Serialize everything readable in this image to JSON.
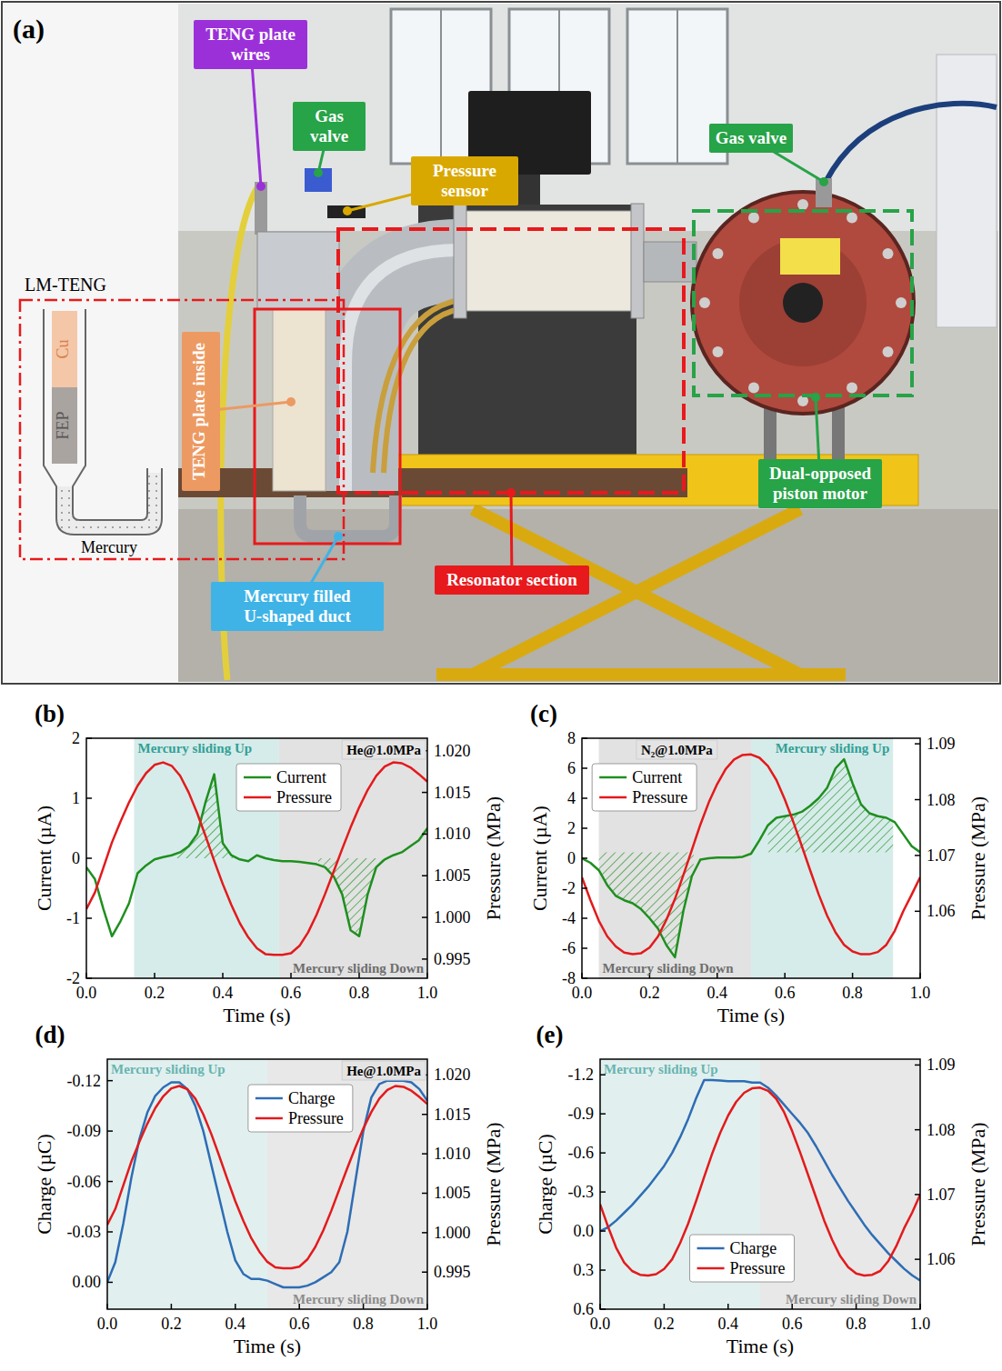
{
  "panel_a": {
    "label": "(a)",
    "inset": {
      "title": "LM-TENG",
      "layers": [
        "Cu",
        "FEP"
      ],
      "liquid": "Mercury"
    },
    "callouts": [
      {
        "text": "TENG plate wires",
        "color": "#9b30d9"
      },
      {
        "text": "Gas valve",
        "color": "#27a348"
      },
      {
        "text": "Pressure sensor",
        "color": "#d9a800"
      },
      {
        "text": "Gas valve",
        "color": "#27a348"
      },
      {
        "text": "TENG plate inside",
        "color": "#ec9a62"
      },
      {
        "text": "Mercury filled U-shaped duct",
        "color": "#3fb3e6"
      },
      {
        "text": "Resonator section",
        "color": "#e8191c"
      },
      {
        "text": "Dual-opposed piston motor",
        "color": "#27a348"
      }
    ]
  },
  "chart_data": [
    {
      "type": "line",
      "panel": "(b)",
      "annotation": "He@1.0MPa",
      "x_label": "Time (s)",
      "y_label": "Current (µA)",
      "y2_label": "Pressure (MPa)",
      "x": [
        0,
        0.025,
        0.05,
        0.075,
        0.1,
        0.125,
        0.15,
        0.175,
        0.2,
        0.225,
        0.25,
        0.275,
        0.3,
        0.325,
        0.35,
        0.375,
        0.4,
        0.425,
        0.45,
        0.475,
        0.5,
        0.525,
        0.55,
        0.575,
        0.6,
        0.625,
        0.65,
        0.675,
        0.7,
        0.725,
        0.75,
        0.775,
        0.8,
        0.825,
        0.85,
        0.875,
        0.9,
        0.925,
        0.95,
        0.975,
        1
      ],
      "xlim": [
        0,
        1
      ],
      "xticks": [
        {
          "value": 0,
          "label": "0.0"
        },
        {
          "value": 0.2,
          "label": "0.2"
        },
        {
          "value": 0.4,
          "label": "0.4"
        },
        {
          "value": 0.6,
          "label": "0.6"
        },
        {
          "value": 0.8,
          "label": "0.8"
        },
        {
          "value": 1,
          "label": "1.0"
        }
      ],
      "ylim": [
        -2,
        2
      ],
      "yticks": [
        -2,
        -1,
        0,
        1,
        2
      ],
      "y2lim": [
        0.9927,
        1.0215
      ],
      "y2ticks": [
        0.995,
        {
          "value": 1,
          "label": "1.000"
        },
        1.005,
        {
          "value": 1.01,
          "label": "1.010"
        },
        1.015,
        {
          "value": 1.02,
          "label": "1.020"
        }
      ],
      "legend": "upper center",
      "series": [
        {
          "name": "Current",
          "color": "#1f8f1f",
          "values": [
            -0.15,
            -0.35,
            -0.85,
            -1.3,
            -1.05,
            -0.75,
            -0.25,
            -0.12,
            -0.02,
            0.02,
            0.05,
            0.1,
            0.2,
            0.4,
            0.95,
            1.4,
            0.25,
            0.05,
            -0.02,
            -0.05,
            0.05,
            0,
            -0.03,
            -0.05,
            -0.05,
            -0.06,
            -0.08,
            -0.1,
            -0.15,
            -0.3,
            -0.6,
            -1.2,
            -1.3,
            -0.6,
            -0.15,
            -0.02,
            0.05,
            0.1,
            0.2,
            0.3,
            0.5
          ]
        },
        {
          "name": "Pressure",
          "color": "#e31a1c",
          "axis": "y2",
          "values": [
            1.001,
            1.003,
            1.006,
            1.009,
            1.0115,
            1.0138,
            1.0158,
            1.0173,
            1.0183,
            1.0186,
            1.0182,
            1.017,
            1.015,
            1.0125,
            1.0097,
            1.0068,
            1.004,
            1.0015,
            0.9993,
            0.9976,
            0.9963,
            0.9956,
            0.9955,
            0.9955,
            0.9957,
            0.9966,
            0.9982,
            1.0003,
            1.0028,
            1.0055,
            1.0082,
            1.0108,
            1.0132,
            1.0153,
            1.017,
            1.0181,
            1.0186,
            1.0185,
            1.018,
            1.0172,
            1.0163
          ]
        }
      ],
      "regions": [
        {
          "label": "Mercury sliding Up",
          "start": 0.14,
          "end": 0.565,
          "color": "#d6ecea"
        },
        {
          "label": "Mercury sliding Down",
          "start": 0.565,
          "end": 1,
          "color": "#e2e2e2"
        }
      ],
      "hatch": [
        {
          "start": 0.26,
          "end": 0.45,
          "base": 0
        },
        {
          "start": 0.68,
          "end": 0.87,
          "base": 0
        }
      ]
    },
    {
      "type": "line",
      "panel": "(c)",
      "annotation": "N₂@1.0MPa",
      "x_label": "Time (s)",
      "y_label": "Current (µA)",
      "y2_label": "Pressure (MPa)",
      "x": [
        0,
        0.025,
        0.05,
        0.075,
        0.1,
        0.125,
        0.15,
        0.175,
        0.2,
        0.225,
        0.25,
        0.275,
        0.3,
        0.325,
        0.35,
        0.375,
        0.4,
        0.425,
        0.45,
        0.475,
        0.5,
        0.525,
        0.55,
        0.575,
        0.6,
        0.625,
        0.65,
        0.675,
        0.7,
        0.725,
        0.75,
        0.775,
        0.8,
        0.825,
        0.85,
        0.875,
        0.9,
        0.925,
        0.95,
        0.975,
        1
      ],
      "xlim": [
        0,
        1
      ],
      "xticks": [
        {
          "value": 0,
          "label": "0.0"
        },
        {
          "value": 0.2,
          "label": "0.2"
        },
        {
          "value": 0.4,
          "label": "0.4"
        },
        {
          "value": 0.6,
          "label": "0.6"
        },
        {
          "value": 0.8,
          "label": "0.8"
        },
        {
          "value": 1,
          "label": "1.0"
        }
      ],
      "ylim": [
        -8,
        8
      ],
      "yticks": [
        -8,
        -6,
        -4,
        -2,
        0,
        2,
        4,
        6,
        8
      ],
      "y2lim": [
        1.048,
        1.091
      ],
      "y2ticks": [
        1.06,
        1.07,
        1.08,
        1.09
      ],
      "legend": "upper left",
      "series": [
        {
          "name": "Current",
          "color": "#1f8f1f",
          "values": [
            0,
            -0.3,
            -0.8,
            -1.8,
            -2.5,
            -2.8,
            -3,
            -3.4,
            -4,
            -4.7,
            -5.8,
            -6.6,
            -3.5,
            -1.2,
            -0.1,
            0,
            0.05,
            0.05,
            0.05,
            0.1,
            0.3,
            1.2,
            2.2,
            2.7,
            2.8,
            2.9,
            3.1,
            3.5,
            4,
            4.7,
            6,
            6.6,
            5,
            3.6,
            3,
            2.8,
            2.7,
            2.4,
            1.6,
            0.8,
            0.4
          ]
        },
        {
          "name": "Pressure",
          "color": "#e31a1c",
          "axis": "y2",
          "values": [
            1.0661,
            1.062,
            1.0583,
            1.0555,
            1.0537,
            1.0526,
            1.0523,
            1.0525,
            1.0535,
            1.0555,
            1.0585,
            1.0622,
            1.0665,
            1.071,
            1.0755,
            1.0795,
            1.0828,
            1.0855,
            1.0872,
            1.088,
            1.0881,
            1.0875,
            1.086,
            1.0835,
            1.08,
            1.076,
            1.0717,
            1.0673,
            1.063,
            1.0592,
            1.0562,
            1.054,
            1.0528,
            1.0523,
            1.0523,
            1.0527,
            1.054,
            1.0565,
            1.06,
            1.063,
            1.0661
          ]
        }
      ],
      "regions": [
        {
          "label": "Mercury sliding Down",
          "start": 0.05,
          "end": 0.5,
          "color": "#e2e2e2"
        },
        {
          "label": "Mercury sliding Up",
          "start": 0.5,
          "end": 0.92,
          "color": "#d6ecea"
        }
      ],
      "hatch": [
        {
          "start": 0.05,
          "end": 0.33,
          "base": 0.4
        },
        {
          "start": 0.55,
          "end": 0.92,
          "base": 0.4
        }
      ]
    },
    {
      "type": "line",
      "panel": "(d)",
      "annotation": "He@1.0MPa",
      "x_label": "Time (s)",
      "y_label": "Charge (µC)",
      "y2_label": "Pressure (MPa)",
      "x": [
        0,
        0.025,
        0.05,
        0.075,
        0.1,
        0.125,
        0.15,
        0.175,
        0.2,
        0.225,
        0.25,
        0.275,
        0.3,
        0.325,
        0.35,
        0.375,
        0.4,
        0.425,
        0.45,
        0.475,
        0.5,
        0.525,
        0.55,
        0.575,
        0.6,
        0.625,
        0.65,
        0.675,
        0.7,
        0.725,
        0.75,
        0.775,
        0.8,
        0.825,
        0.85,
        0.875,
        0.9,
        0.925,
        0.95,
        0.975,
        1
      ],
      "xlim": [
        0,
        1
      ],
      "xticks": [
        {
          "value": 0,
          "label": "0.0"
        },
        {
          "value": 0.2,
          "label": "0.2"
        },
        {
          "value": 0.4,
          "label": "0.4"
        },
        {
          "value": 0.6,
          "label": "0.6"
        },
        {
          "value": 0.8,
          "label": "0.8"
        },
        {
          "value": 1,
          "label": "1.0"
        }
      ],
      "ylim": [
        0.016,
        -0.1328
      ],
      "yticks": [
        {
          "value": 0,
          "label": "0.00"
        },
        -0.03,
        -0.06,
        -0.09,
        -0.12
      ],
      "y2lim": [
        0.9903,
        1.022
      ],
      "y2ticks": [
        0.995,
        {
          "value": 1,
          "label": "1.000"
        },
        1.005,
        {
          "value": 1.01,
          "label": "1.010"
        },
        1.015,
        {
          "value": 1.02,
          "label": "1.020"
        }
      ],
      "legend": "upper center",
      "series": [
        {
          "name": "Charge",
          "color": "#2e6db4",
          "values": [
            0,
            -0.012,
            -0.035,
            -0.062,
            -0.085,
            -0.101,
            -0.111,
            -0.116,
            -0.119,
            -0.119,
            -0.115,
            -0.105,
            -0.09,
            -0.07,
            -0.05,
            -0.03,
            -0.013,
            -0.005,
            -0.002,
            -0.002,
            -0.001,
            0.001,
            0.003,
            0.003,
            0.003,
            0.002,
            0,
            -0.003,
            -0.006,
            -0.012,
            -0.03,
            -0.06,
            -0.09,
            -0.11,
            -0.118,
            -0.12,
            -0.12,
            -0.12,
            -0.119,
            -0.115,
            -0.108
          ]
        },
        {
          "name": "Pressure",
          "color": "#e31a1c",
          "axis": "y2",
          "values": [
            1.001,
            1.003,
            1.006,
            1.009,
            1.0115,
            1.0138,
            1.0158,
            1.0173,
            1.0183,
            1.0186,
            1.0182,
            1.017,
            1.015,
            1.0125,
            1.0097,
            1.0068,
            1.004,
            1.0015,
            0.9993,
            0.9976,
            0.9963,
            0.9956,
            0.9955,
            0.9955,
            0.9957,
            0.9966,
            0.9982,
            1.0003,
            1.0028,
            1.0055,
            1.0082,
            1.0108,
            1.0132,
            1.0153,
            1.017,
            1.0181,
            1.0186,
            1.0185,
            1.018,
            1.0172,
            1.0163
          ]
        }
      ],
      "regions": [
        {
          "label": "Mercury sliding Up",
          "start": 0,
          "end": 0.5,
          "color": "#e1f0ef"
        },
        {
          "label": "Mercury sliding Down",
          "start": 0.5,
          "end": 1,
          "color": "#e8e8e8"
        }
      ]
    },
    {
      "type": "line",
      "panel": "(e)",
      "x_label": "Time (s)",
      "y_label": "Charge (µC)",
      "y2_label": "Pressure (MPa)",
      "x": [
        0,
        0.025,
        0.05,
        0.075,
        0.1,
        0.125,
        0.15,
        0.175,
        0.2,
        0.225,
        0.25,
        0.275,
        0.3,
        0.325,
        0.35,
        0.375,
        0.4,
        0.425,
        0.45,
        0.475,
        0.5,
        0.525,
        0.55,
        0.575,
        0.6,
        0.625,
        0.65,
        0.675,
        0.7,
        0.725,
        0.75,
        0.775,
        0.8,
        0.825,
        0.85,
        0.875,
        0.9,
        0.925,
        0.95,
        0.975,
        1
      ],
      "xlim": [
        0,
        1
      ],
      "xticks": [
        {
          "value": 0,
          "label": "0.0"
        },
        {
          "value": 0.2,
          "label": "0.2"
        },
        {
          "value": 0.4,
          "label": "0.4"
        },
        {
          "value": 0.6,
          "label": "0.6"
        },
        {
          "value": 0.8,
          "label": "0.8"
        },
        {
          "value": 1,
          "label": "1.0"
        }
      ],
      "ylim": [
        0.6,
        -1.32
      ],
      "yticks": [
        0.6,
        0.3,
        {
          "value": 0,
          "label": "0.0"
        },
        -0.3,
        -0.6,
        -0.9,
        -1.2
      ],
      "y2lim": [
        1.0523,
        1.0909
      ],
      "y2ticks": [
        1.06,
        1.07,
        1.08,
        1.09
      ],
      "legend": "lower center",
      "series": [
        {
          "name": "Charge",
          "color": "#2e6db4",
          "values": [
            0,
            -0.03,
            -0.08,
            -0.14,
            -0.2,
            -0.27,
            -0.34,
            -0.42,
            -0.5,
            -0.6,
            -0.72,
            -0.86,
            -1.02,
            -1.16,
            -1.16,
            -1.155,
            -1.15,
            -1.15,
            -1.15,
            -1.14,
            -1.14,
            -1.1,
            -1.04,
            -0.97,
            -0.9,
            -0.83,
            -0.75,
            -0.65,
            -0.54,
            -0.43,
            -0.33,
            -0.23,
            -0.14,
            -0.05,
            0.03,
            0.1,
            0.17,
            0.23,
            0.29,
            0.34,
            0.38
          ]
        },
        {
          "name": "Pressure",
          "color": "#e31a1c",
          "axis": "y2",
          "values": [
            1.0685,
            1.065,
            1.0618,
            1.0595,
            1.0582,
            1.0576,
            1.0575,
            1.0577,
            1.0585,
            1.06,
            1.0625,
            1.0655,
            1.069,
            1.0727,
            1.0763,
            1.0795,
            1.0822,
            1.0843,
            1.0857,
            1.0864,
            1.0865,
            1.086,
            1.0848,
            1.0827,
            1.0798,
            1.0765,
            1.073,
            1.0695,
            1.066,
            1.063,
            1.0605,
            1.0588,
            1.0578,
            1.0575,
            1.0576,
            1.0582,
            1.0597,
            1.062,
            1.0648,
            1.0672,
            1.07
          ]
        }
      ],
      "regions": [
        {
          "label": "Mercury sliding Up",
          "start": 0,
          "end": 0.5,
          "color": "#e1f0ef"
        },
        {
          "label": "Mercury sliding Down",
          "start": 0.5,
          "end": 1,
          "color": "#e8e8e8"
        }
      ]
    }
  ]
}
